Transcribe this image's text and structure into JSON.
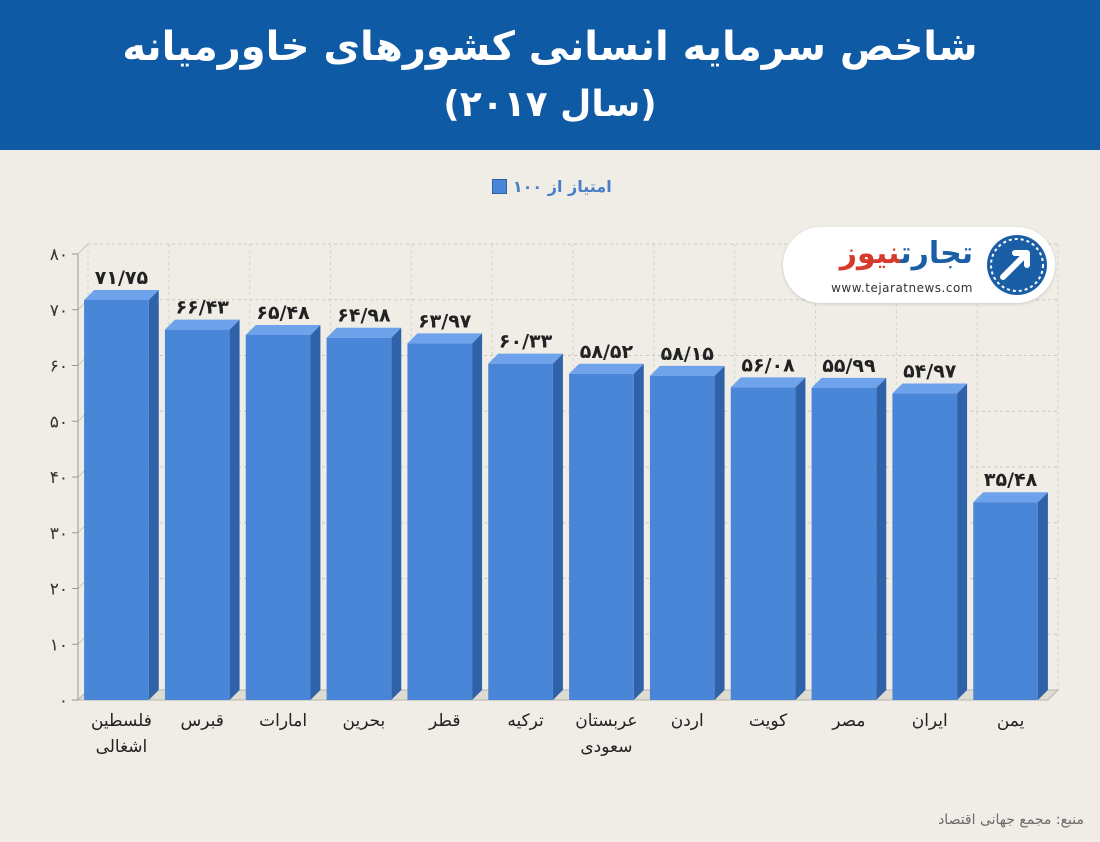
{
  "header": {
    "title": "شاخص سرمایه انسانی کشورهای خاورمیانه",
    "subtitle": "(سال ۲۰۱۷)"
  },
  "legend": {
    "label": "امتیاز از ۱۰۰"
  },
  "logo": {
    "part1": "تجارت",
    "part2": "نیوز",
    "url": "www.tejaratnews.com"
  },
  "source": "منبع: مجمع جهانی اقتصاد",
  "colors": {
    "bar_front": "#4a86d8",
    "bar_top": "#6ea3ec",
    "bar_side": "#2f62a8",
    "header_bg": "#0e5aa4",
    "background": "#efede6"
  },
  "chart_data": {
    "type": "bar",
    "categories": [
      [
        "فلسطین",
        "اشغالی"
      ],
      [
        "قبرس"
      ],
      [
        "امارات"
      ],
      [
        "بحرین"
      ],
      [
        "قطر"
      ],
      [
        "ترکیه"
      ],
      [
        "عربستان",
        "سعودی"
      ],
      [
        "اردن"
      ],
      [
        "کویت"
      ],
      [
        "مصر"
      ],
      [
        "ایران"
      ],
      [
        "یمن"
      ]
    ],
    "values": [
      71.75,
      66.43,
      65.48,
      64.98,
      63.97,
      60.33,
      58.52,
      58.15,
      56.08,
      55.99,
      54.97,
      35.48
    ],
    "value_labels": [
      "۷۱/۷۵",
      "۶۶/۴۳",
      "۶۵/۴۸",
      "۶۴/۹۸",
      "۶۳/۹۷",
      "۶۰/۳۳",
      "۵۸/۵۲",
      "۵۸/۱۵",
      "۵۶/۰۸",
      "۵۵/۹۹",
      "۵۴/۹۷",
      "۳۵/۴۸"
    ],
    "yticks": [
      "۰",
      "۱۰",
      "۲۰",
      "۳۰",
      "۴۰",
      "۵۰",
      "۶۰",
      "۷۰",
      "۸۰"
    ],
    "ylim": [
      0,
      80
    ],
    "grid": true,
    "series": [
      {
        "name": "امتیاز از ۱۰۰"
      }
    ]
  }
}
